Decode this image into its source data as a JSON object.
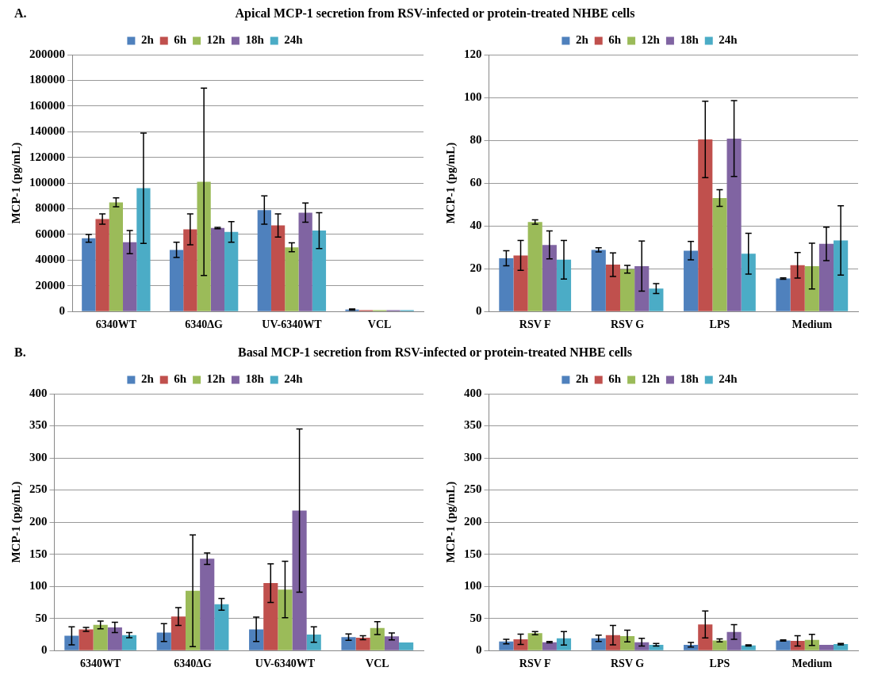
{
  "chart_data": [
    {
      "type": "bar",
      "title": "Apical MCP-1 secretion from RSV-infected or protein-treated NHBE cells",
      "annotations": [
        "A."
      ],
      "ylabel": "MCP-1 (pg/mL)",
      "categories": [
        "6340WT",
        "6340ΔG",
        "UV-6340WT",
        "VCL"
      ],
      "ylim": [
        0,
        200000
      ],
      "yticks": [
        0,
        20000,
        40000,
        60000,
        80000,
        100000,
        120000,
        140000,
        160000,
        180000,
        200000
      ],
      "grid": "y",
      "legend": "top",
      "series": [
        {
          "name": "2h",
          "color": "#4f81bd",
          "values": [
            57000,
            48000,
            79000,
            1500
          ],
          "errors": [
            3000,
            6000,
            11000,
            500
          ]
        },
        {
          "name": "6h",
          "color": "#c0504d",
          "values": [
            72000,
            64000,
            67000,
            1000
          ],
          "errors": [
            4000,
            12000,
            9000,
            null
          ]
        },
        {
          "name": "12h",
          "color": "#9bbb59",
          "values": [
            85000,
            101000,
            50000,
            1000
          ],
          "errors": [
            3500,
            73000,
            3500,
            null
          ]
        },
        {
          "name": "18h",
          "color": "#8064a2",
          "values": [
            54000,
            65000,
            77000,
            1000
          ],
          "errors": [
            9000,
            500,
            7500,
            null
          ]
        },
        {
          "name": "24h",
          "color": "#4bacc6",
          "values": [
            96000,
            62000,
            63000,
            1000
          ],
          "errors": [
            43000,
            8000,
            14000,
            null
          ]
        }
      ]
    },
    {
      "type": "bar",
      "ylabel": "MCP-1 (pg/mL)",
      "categories": [
        "RSV F",
        "RSV G",
        "LPS",
        "Medium"
      ],
      "ylim": [
        0,
        120
      ],
      "yticks": [
        0,
        20,
        40,
        60,
        80,
        100,
        120
      ],
      "grid": "y",
      "legend": "top",
      "series": [
        {
          "name": "2h",
          "color": "#4f81bd",
          "values": [
            24.9,
            28.8,
            28.4,
            15.4
          ],
          "errors": [
            3.5,
            1,
            4.3,
            0.3
          ]
        },
        {
          "name": "6h",
          "color": "#c0504d",
          "values": [
            26.2,
            21.9,
            80.4,
            21.6
          ],
          "errors": [
            7,
            5.5,
            17.9,
            6
          ]
        },
        {
          "name": "12h",
          "color": "#9bbb59",
          "values": [
            41.8,
            19.7,
            53,
            21.2
          ],
          "errors": [
            1,
            1.8,
            3.9,
            10.7
          ]
        },
        {
          "name": "18h",
          "color": "#8064a2",
          "values": [
            31.1,
            21.2,
            80.8,
            31.6
          ],
          "errors": [
            6.5,
            11.7,
            17.7,
            7.8
          ]
        },
        {
          "name": "24h",
          "color": "#4bacc6",
          "values": [
            24.2,
            10.7,
            27,
            33.2
          ],
          "errors": [
            9,
            2.3,
            9.5,
            16.2
          ]
        }
      ]
    },
    {
      "type": "bar",
      "title": "Basal MCP-1 secretion from RSV-infected or protein-treated NHBE cells",
      "annotations": [
        "B."
      ],
      "ylabel": "MCP-1 (pg/mL)",
      "categories": [
        "6340WT",
        "6340ΔG",
        "UV-6340WT",
        "VCL"
      ],
      "ylim": [
        0,
        400
      ],
      "yticks": [
        0,
        50,
        100,
        150,
        200,
        250,
        300,
        350,
        400
      ],
      "grid": "y",
      "legend": "top",
      "series": [
        {
          "name": "2h",
          "color": "#4f81bd",
          "values": [
            23,
            28,
            33,
            21
          ],
          "errors": [
            14,
            14,
            19,
            5
          ]
        },
        {
          "name": "6h",
          "color": "#c0504d",
          "values": [
            33,
            53,
            105,
            20
          ],
          "errors": [
            3,
            14,
            30,
            3
          ]
        },
        {
          "name": "12h",
          "color": "#9bbb59",
          "values": [
            40,
            93,
            95,
            35
          ],
          "errors": [
            6,
            87,
            44,
            10
          ]
        },
        {
          "name": "18h",
          "color": "#8064a2",
          "values": [
            36,
            143,
            218,
            22
          ],
          "errors": [
            8,
            9,
            127,
            5.5
          ]
        },
        {
          "name": "24h",
          "color": "#4bacc6",
          "values": [
            24,
            72,
            25,
            12.5
          ],
          "errors": [
            4,
            9,
            12,
            null
          ]
        }
      ]
    },
    {
      "type": "bar",
      "ylabel": "MCP-1 (pg/mL)",
      "categories": [
        "RSV F",
        "RSV G",
        "LPS",
        "Medium"
      ],
      "ylim": [
        0,
        400
      ],
      "yticks": [
        0,
        50,
        100,
        150,
        200,
        250,
        300,
        350,
        400
      ],
      "grid": "y",
      "legend": "top",
      "series": [
        {
          "name": "2h",
          "color": "#4f81bd",
          "values": [
            14,
            19,
            9,
            15.7
          ],
          "errors": [
            3.5,
            5,
            3.5,
            1
          ]
        },
        {
          "name": "6h",
          "color": "#c0504d",
          "values": [
            17.5,
            24,
            40.6,
            15
          ],
          "errors": [
            8,
            15,
            21,
            8
          ]
        },
        {
          "name": "12h",
          "color": "#9bbb59",
          "values": [
            27,
            22.6,
            15.7,
            16.6
          ],
          "errors": [
            2.5,
            9,
            2.3,
            8.5
          ]
        },
        {
          "name": "18h",
          "color": "#8064a2",
          "values": [
            13,
            13,
            29,
            9
          ],
          "errors": [
            1,
            6,
            11.5,
            null
          ]
        },
        {
          "name": "24h",
          "color": "#4bacc6",
          "values": [
            19,
            9,
            8,
            10
          ],
          "errors": [
            10.5,
            2,
            1,
            1
          ]
        }
      ]
    }
  ]
}
